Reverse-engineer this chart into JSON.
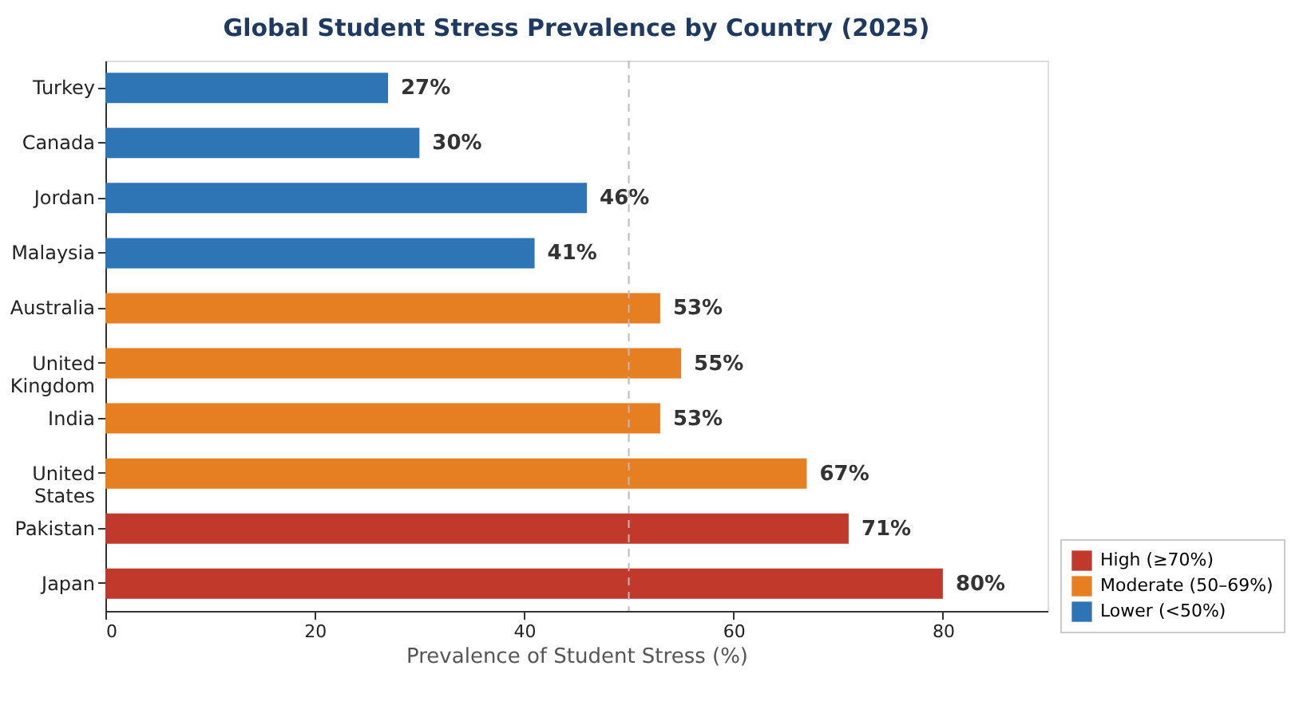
{
  "chart_data": {
    "type": "bar",
    "orientation": "horizontal",
    "title": "Global Student Stress Prevalence by Country (2025)",
    "xlabel": "Prevalence of Student Stress (%)",
    "categories": [
      "Turkey",
      "Canada",
      "Jordan",
      "Malaysia",
      "Australia",
      "United Kingdom",
      "India",
      "United States",
      "Pakistan",
      "Japan"
    ],
    "series": [
      {
        "name": "High (≥70%)",
        "color": "#c0392b",
        "values": [
          null,
          null,
          null,
          null,
          null,
          null,
          null,
          null,
          71,
          80
        ]
      },
      {
        "name": "Moderate (50–69%)",
        "color": "#e67e22",
        "values": [
          null,
          null,
          null,
          null,
          53,
          55,
          53,
          67,
          null,
          null
        ]
      },
      {
        "name": "Lower (<50%)",
        "color": "#2e75b6",
        "values": [
          27,
          30,
          46,
          41,
          null,
          null,
          null,
          null,
          null,
          null
        ]
      }
    ],
    "value_labels": [
      "27%",
      "30%",
      "46%",
      "41%",
      "53%",
      "55%",
      "53%",
      "67%",
      "71%",
      "80%"
    ],
    "xlim": [
      0,
      90
    ],
    "xticks": [
      0,
      20,
      40,
      60,
      80
    ],
    "ref_lines": [
      {
        "axis": "x",
        "value": 50,
        "color": "#bbbbbb",
        "line_style": "dashed"
      }
    ],
    "grid": false,
    "legend": "bottom right"
  }
}
